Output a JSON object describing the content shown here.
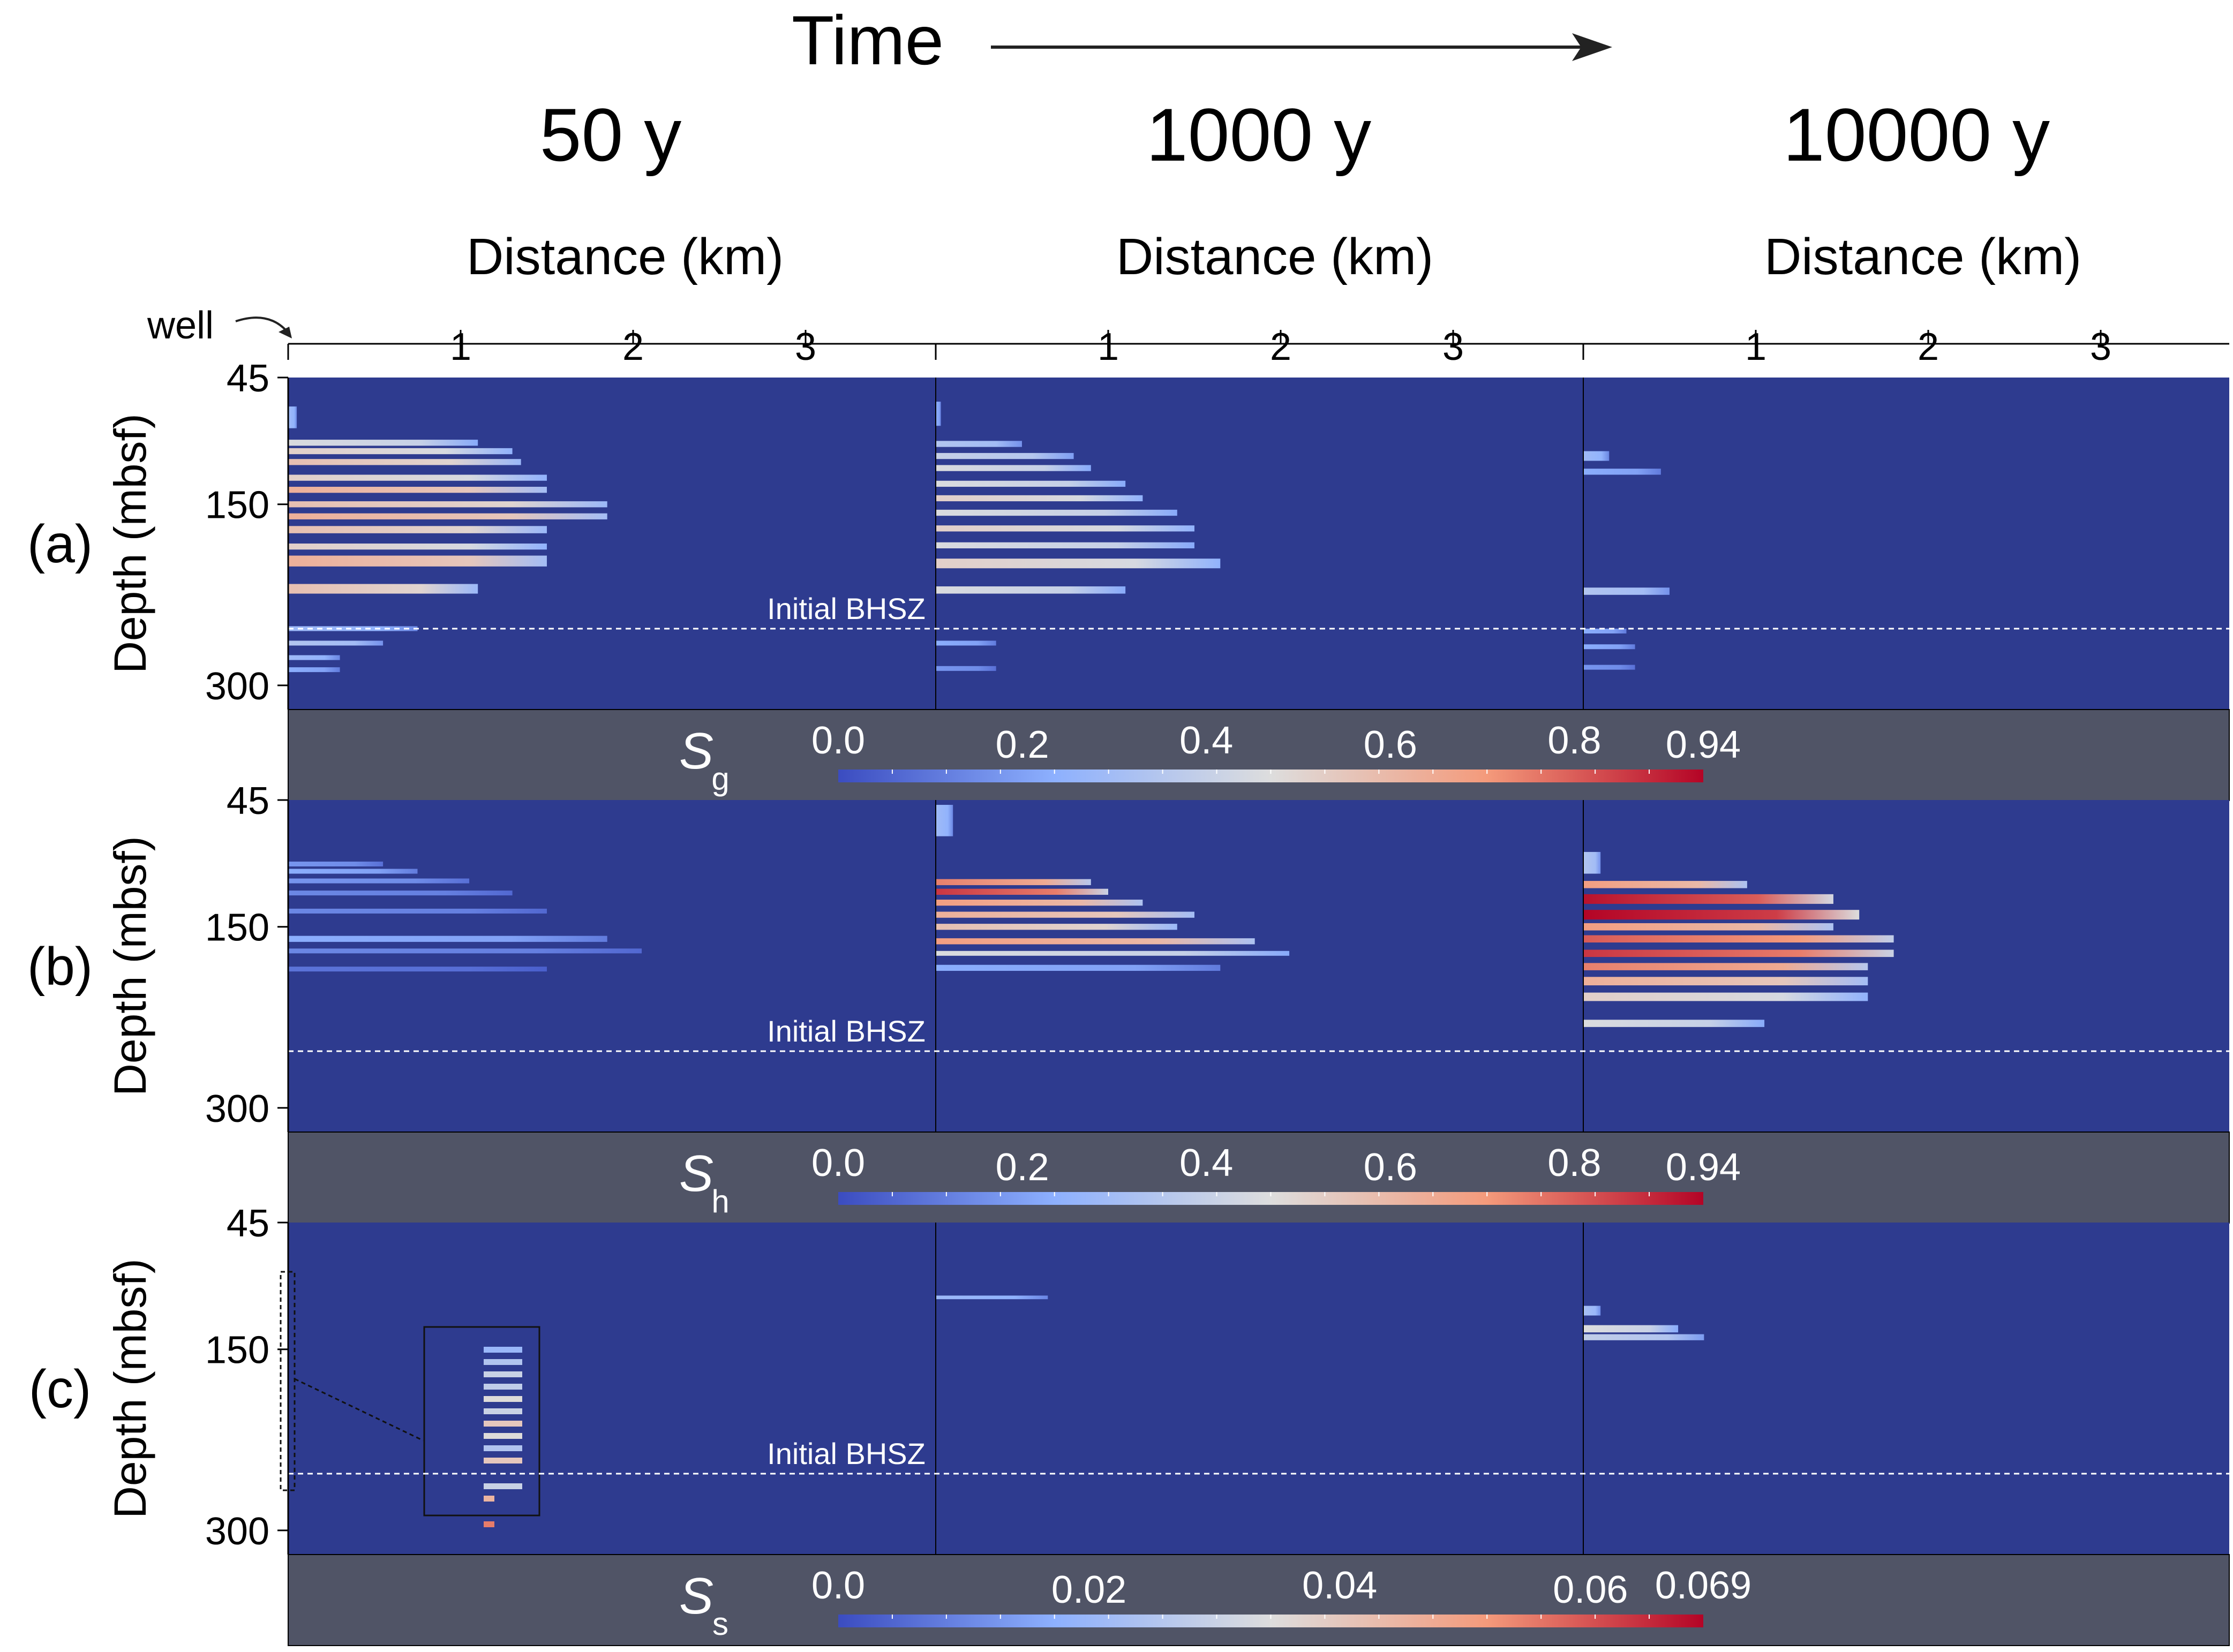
{
  "header": {
    "time_label": "Time",
    "columns": [
      "50 y",
      "1000 y",
      "10000 y"
    ],
    "distance_label": "Distance (km)",
    "x_ticks": [
      "1",
      "2",
      "3"
    ],
    "well_label": "well"
  },
  "rows": [
    {
      "id": "a",
      "tag": "(a)",
      "ylabel": "Depth (mbsf)",
      "y_ticks": [
        "45",
        "150",
        "300"
      ],
      "bhsz_label": "Initial BHSZ"
    },
    {
      "id": "b",
      "tag": "(b)",
      "ylabel": "Depth (mbsf)",
      "y_ticks": [
        "45",
        "150",
        "300"
      ],
      "bhsz_label": "Initial BHSZ"
    },
    {
      "id": "c",
      "tag": "(c)",
      "ylabel": "Depth (mbsf)",
      "y_ticks": [
        "45",
        "150",
        "300"
      ],
      "bhsz_label": "Initial BHSZ"
    }
  ],
  "colorbars": [
    {
      "symbol": "S",
      "subscript": "g",
      "ticks": [
        "0.0",
        "0.2",
        "0.4",
        "0.6",
        "0.8",
        "0.94"
      ],
      "tick_values": [
        0,
        0.2,
        0.4,
        0.6,
        0.8,
        0.94
      ],
      "max": 0.94
    },
    {
      "symbol": "S",
      "subscript": "h",
      "ticks": [
        "0.0",
        "0.2",
        "0.4",
        "0.6",
        "0.8",
        "0.94"
      ],
      "tick_values": [
        0,
        0.2,
        0.4,
        0.6,
        0.8,
        0.94
      ],
      "max": 0.94
    },
    {
      "symbol": "S",
      "subscript": "s",
      "ticks": [
        "0.0",
        "0.02",
        "0.04",
        "0.06",
        "0.069"
      ],
      "tick_values": [
        0,
        0.02,
        0.04,
        0.06,
        0.069
      ],
      "max": 0.069
    }
  ],
  "colors": {
    "background": "#2e3b8f",
    "colorbar_panel": "#505466",
    "axis": "#000000",
    "bhsz_line": "#ffffff",
    "colormap": [
      "#3b4cc0",
      "#8db0fe",
      "#dddddd",
      "#f49a7b",
      "#b40426"
    ]
  },
  "chart_data": {
    "type": "heatmap",
    "x_range_km": [
      0,
      3.8
    ],
    "depth_range_mbsf": [
      45,
      320
    ],
    "x_ticks_km": [
      1,
      2,
      3
    ],
    "y_ticks_mbsf": [
      45,
      150,
      300
    ],
    "initial_bhsz_mbsf": 253,
    "panels": [
      {
        "row": "a",
        "time": "50 y",
        "variable": "Sg",
        "bands": [
          {
            "depth": 78,
            "thick": 18,
            "x_end": 0.05,
            "value": 0.25
          },
          {
            "depth": 99,
            "thick": 5,
            "x_end": 1.1,
            "value": 0.4
          },
          {
            "depth": 106,
            "thick": 5,
            "x_end": 1.3,
            "value": 0.45
          },
          {
            "depth": 115,
            "thick": 5,
            "x_end": 1.35,
            "value": 0.5
          },
          {
            "depth": 128,
            "thick": 5,
            "x_end": 1.5,
            "value": 0.45
          },
          {
            "depth": 138,
            "thick": 5,
            "x_end": 1.5,
            "value": 0.55
          },
          {
            "depth": 150,
            "thick": 5,
            "x_end": 1.85,
            "value": 0.5
          },
          {
            "depth": 160,
            "thick": 5,
            "x_end": 1.85,
            "value": 0.55
          },
          {
            "depth": 171,
            "thick": 6,
            "x_end": 1.5,
            "value": 0.5
          },
          {
            "depth": 185,
            "thick": 5,
            "x_end": 1.5,
            "value": 0.45
          },
          {
            "depth": 197,
            "thick": 9,
            "x_end": 1.5,
            "value": 0.55
          },
          {
            "depth": 220,
            "thick": 8,
            "x_end": 1.1,
            "value": 0.5
          },
          {
            "depth": 253,
            "thick": 4,
            "x_end": 0.75,
            "value": 0.25
          },
          {
            "depth": 265,
            "thick": 4,
            "x_end": 0.55,
            "value": 0.3
          },
          {
            "depth": 277,
            "thick": 4,
            "x_end": 0.3,
            "value": 0.25
          },
          {
            "depth": 287,
            "thick": 4,
            "x_end": 0.3,
            "value": 0.2
          }
        ]
      },
      {
        "row": "a",
        "time": "1000 y",
        "variable": "Sg",
        "bands": [
          {
            "depth": 75,
            "thick": 20,
            "x_end": 0.03,
            "value": 0.2
          },
          {
            "depth": 100,
            "thick": 5,
            "x_end": 0.5,
            "value": 0.3
          },
          {
            "depth": 110,
            "thick": 5,
            "x_end": 0.8,
            "value": 0.35
          },
          {
            "depth": 120,
            "thick": 5,
            "x_end": 0.9,
            "value": 0.4
          },
          {
            "depth": 133,
            "thick": 5,
            "x_end": 1.1,
            "value": 0.4
          },
          {
            "depth": 145,
            "thick": 5,
            "x_end": 1.2,
            "value": 0.45
          },
          {
            "depth": 157,
            "thick": 5,
            "x_end": 1.4,
            "value": 0.4
          },
          {
            "depth": 170,
            "thick": 5,
            "x_end": 1.5,
            "value": 0.45
          },
          {
            "depth": 184,
            "thick": 5,
            "x_end": 1.5,
            "value": 0.4
          },
          {
            "depth": 199,
            "thick": 8,
            "x_end": 1.65,
            "value": 0.45
          },
          {
            "depth": 221,
            "thick": 6,
            "x_end": 1.1,
            "value": 0.4
          },
          {
            "depth": 265,
            "thick": 4,
            "x_end": 0.35,
            "value": 0.2
          },
          {
            "depth": 286,
            "thick": 4,
            "x_end": 0.35,
            "value": 0.15
          }
        ]
      },
      {
        "row": "a",
        "time": "10000 y",
        "variable": "Sg",
        "bands": [
          {
            "depth": 110,
            "thick": 8,
            "x_end": 0.15,
            "value": 0.25
          },
          {
            "depth": 123,
            "thick": 5,
            "x_end": 0.45,
            "value": 0.2
          },
          {
            "depth": 222,
            "thick": 6,
            "x_end": 0.5,
            "value": 0.3
          },
          {
            "depth": 255,
            "thick": 4,
            "x_end": 0.25,
            "value": 0.2
          },
          {
            "depth": 268,
            "thick": 4,
            "x_end": 0.3,
            "value": 0.2
          },
          {
            "depth": 285,
            "thick": 4,
            "x_end": 0.3,
            "value": 0.15
          }
        ]
      },
      {
        "row": "b",
        "time": "50 y",
        "variable": "Sh",
        "bands": [
          {
            "depth": 98,
            "thick": 4,
            "x_end": 0.55,
            "value": 0.15
          },
          {
            "depth": 104,
            "thick": 4,
            "x_end": 0.75,
            "value": 0.2
          },
          {
            "depth": 112,
            "thick": 4,
            "x_end": 1.05,
            "value": 0.15
          },
          {
            "depth": 122,
            "thick": 4,
            "x_end": 1.3,
            "value": 0.12
          },
          {
            "depth": 137,
            "thick": 4,
            "x_end": 1.5,
            "value": 0.12
          },
          {
            "depth": 160,
            "thick": 5,
            "x_end": 1.85,
            "value": 0.2
          },
          {
            "depth": 170,
            "thick": 4,
            "x_end": 2.05,
            "value": 0.12
          },
          {
            "depth": 185,
            "thick": 4,
            "x_end": 1.5,
            "value": 0.08
          }
        ]
      },
      {
        "row": "b",
        "time": "1000 y",
        "variable": "Sh",
        "bands": [
          {
            "depth": 62,
            "thick": 26,
            "x_end": 0.1,
            "value": 0.25
          },
          {
            "depth": 113,
            "thick": 5,
            "x_end": 0.9,
            "value": 0.65
          },
          {
            "depth": 121,
            "thick": 5,
            "x_end": 1.0,
            "value": 0.75
          },
          {
            "depth": 130,
            "thick": 5,
            "x_end": 1.2,
            "value": 0.6
          },
          {
            "depth": 140,
            "thick": 5,
            "x_end": 1.5,
            "value": 0.55
          },
          {
            "depth": 150,
            "thick": 5,
            "x_end": 1.4,
            "value": 0.5
          },
          {
            "depth": 162,
            "thick": 5,
            "x_end": 1.85,
            "value": 0.6
          },
          {
            "depth": 172,
            "thick": 4,
            "x_end": 2.05,
            "value": 0.4
          },
          {
            "depth": 184,
            "thick": 5,
            "x_end": 1.65,
            "value": 0.2
          }
        ]
      },
      {
        "row": "b",
        "time": "10000 y",
        "variable": "Sh",
        "bands": [
          {
            "depth": 97,
            "thick": 18,
            "x_end": 0.1,
            "value": 0.3
          },
          {
            "depth": 115,
            "thick": 6,
            "x_end": 0.95,
            "value": 0.6
          },
          {
            "depth": 127,
            "thick": 8,
            "x_end": 1.45,
            "value": 0.8
          },
          {
            "depth": 140,
            "thick": 8,
            "x_end": 1.6,
            "value": 0.85
          },
          {
            "depth": 150,
            "thick": 6,
            "x_end": 1.45,
            "value": 0.6
          },
          {
            "depth": 160,
            "thick": 6,
            "x_end": 1.8,
            "value": 0.7
          },
          {
            "depth": 172,
            "thick": 6,
            "x_end": 1.8,
            "value": 0.75
          },
          {
            "depth": 183,
            "thick": 6,
            "x_end": 1.65,
            "value": 0.65
          },
          {
            "depth": 195,
            "thick": 7,
            "x_end": 1.65,
            "value": 0.55
          },
          {
            "depth": 208,
            "thick": 7,
            "x_end": 1.65,
            "value": 0.45
          },
          {
            "depth": 230,
            "thick": 6,
            "x_end": 1.05,
            "value": 0.4
          }
        ]
      },
      {
        "row": "c",
        "time": "1000 y",
        "variable": "Ss",
        "bands": [
          {
            "depth": 107,
            "thick": 3,
            "x_end": 0.65,
            "value": 0.018
          }
        ]
      },
      {
        "row": "c",
        "time": "10000 y",
        "variable": "Ss",
        "bands": [
          {
            "depth": 118,
            "thick": 8,
            "x_end": 0.1,
            "value": 0.02
          },
          {
            "depth": 133,
            "thick": 6,
            "x_end": 0.55,
            "value": 0.03
          },
          {
            "depth": 140,
            "thick": 5,
            "x_end": 0.7,
            "value": 0.025
          }
        ]
      }
    ],
    "inset": {
      "row": "c",
      "time": "50 y",
      "variable": "Ss",
      "values": [
        0.02,
        0.025,
        0.03,
        0.028,
        0.035,
        0.03,
        0.04,
        0.035,
        0.025,
        0.04,
        0.03,
        0.045,
        0.055
      ]
    }
  }
}
